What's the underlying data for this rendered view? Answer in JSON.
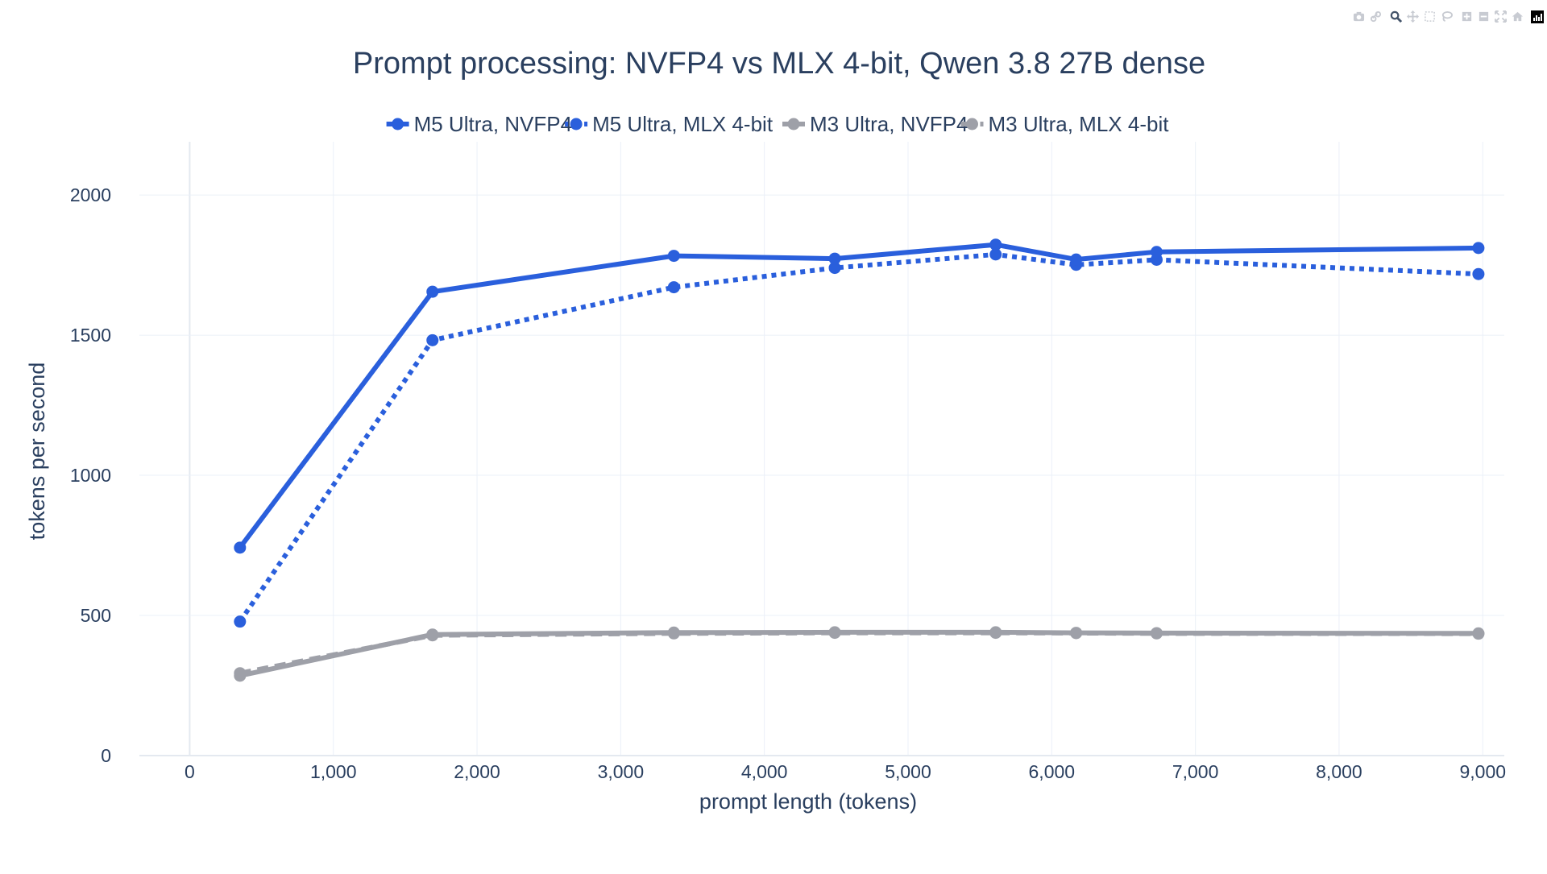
{
  "chart_data": {
    "type": "line",
    "title": "Prompt processing: NVFP4 vs MLX 4-bit, Qwen 3.8 27B dense",
    "xlabel": "prompt length (tokens)",
    "ylabel": "tokens per second",
    "xlim": [
      -350,
      9150
    ],
    "ylim": [
      0,
      2190
    ],
    "xticks": [
      0,
      1000,
      2000,
      3000,
      4000,
      5000,
      6000,
      7000,
      8000,
      9000
    ],
    "xtick_labels": [
      "0",
      "1,000",
      "2,000",
      "3,000",
      "4,000",
      "5,000",
      "6,000",
      "7,000",
      "8,000",
      "9,000"
    ],
    "yticks": [
      0,
      500,
      1000,
      1500,
      2000
    ],
    "ytick_labels": [
      "0",
      "500",
      "1000",
      "1500",
      "2000"
    ],
    "grid": true,
    "legend_position": "top-center",
    "series": [
      {
        "name": "M5 Ultra, NVFP4",
        "color": "#2a5fdc",
        "dash": "solid",
        "x": [
          350,
          1690,
          3370,
          4490,
          5610,
          6170,
          6730,
          8970
        ],
        "y": [
          742,
          1655,
          1783,
          1773,
          1823,
          1770,
          1797,
          1811
        ]
      },
      {
        "name": "M5 Ultra, MLX 4-bit",
        "color": "#2a5fdc",
        "dash": "dot",
        "x": [
          350,
          1690,
          3370,
          4490,
          5610,
          6170,
          6730,
          8970
        ],
        "y": [
          478,
          1482,
          1671,
          1740,
          1788,
          1751,
          1769,
          1718
        ]
      },
      {
        "name": "M3 Ultra, NVFP4",
        "color": "#9ea0a8",
        "dash": "solid",
        "x": [
          350,
          1690,
          3370,
          4490,
          5610,
          6170,
          6730,
          8970
        ],
        "y": [
          285,
          432,
          439,
          440,
          440,
          438,
          437,
          436
        ]
      },
      {
        "name": "M3 Ultra, MLX 4-bit",
        "color": "#9ea0a8",
        "dash": "dash",
        "x": [
          350,
          1690,
          3370,
          4490,
          5610,
          6170,
          6730,
          8970
        ],
        "y": [
          294,
          429,
          436,
          438,
          438,
          437,
          436,
          435
        ]
      }
    ]
  },
  "modebar": {
    "icons": [
      "camera-icon",
      "link-icon",
      "zoom-icon",
      "pan-icon",
      "box-select-icon",
      "lasso-icon",
      "zoom-in-icon",
      "zoom-out-icon",
      "autoscale-icon",
      "home-icon",
      "plotly-logo-icon"
    ]
  }
}
